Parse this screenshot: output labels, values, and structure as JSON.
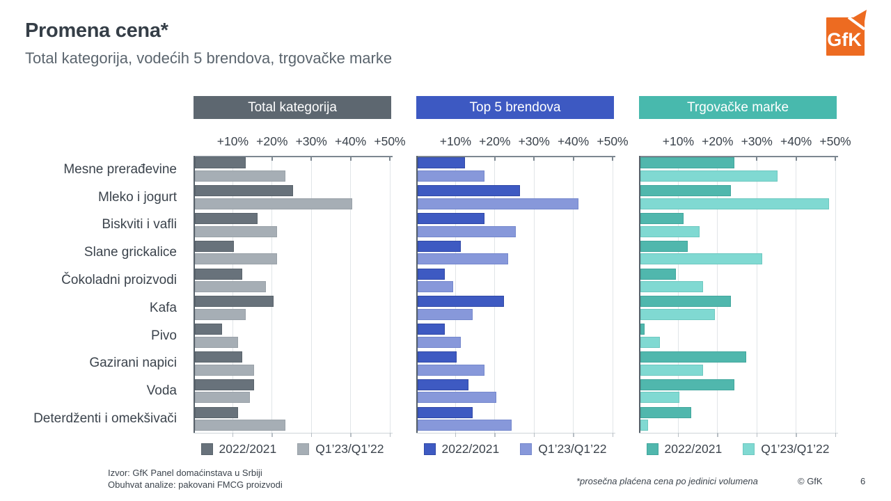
{
  "slide": {
    "title": "Promena cena*",
    "subtitle": "Total kategorija, vodećih 5 brendova, trgovačke marke",
    "logo_text": "GfK",
    "logo_color": "#ed6b21",
    "footer": {
      "source_line1": "Izvor: GfK Panel domaćinstava u Srbiji",
      "source_line2": "Obuhvat analize: pakovani FMCG proizvodi",
      "footnote": "*prosečna plaćena cena po jedinici volumena",
      "copyright": "© GfK",
      "page_number": "6"
    }
  },
  "chart_data": {
    "type": "bar",
    "orientation": "horizontal",
    "grid": true,
    "legend_position": "bottom",
    "axis": {
      "unit": "%",
      "min": 0,
      "max": 50,
      "tick_step": 10,
      "tick_labels": [
        "+10%",
        "+20%",
        "+30%",
        "+40%",
        "+50%"
      ]
    },
    "categories": [
      "Mesne prerađevine",
      "Mleko i jogurt",
      "Biskviti i vafli",
      "Slane grickalice",
      "Čokoladni proizvodi",
      "Kafa",
      "Pivo",
      "Gazirani napici",
      "Voda",
      "Deterdženti i omekšivači"
    ],
    "panels": [
      {
        "title": "Total kategorija",
        "header_color": "#5d6770",
        "series": [
          {
            "name": "2022/2021",
            "color": "#68727b",
            "border_color": "#59636b",
            "values": [
              13,
              25,
              16,
              10,
              12,
              20,
              7,
              12,
              15,
              11
            ]
          },
          {
            "name": "Q1’23/Q1’22",
            "color": "#a6aeb5",
            "border_color": "#99a1a8",
            "values": [
              23,
              40,
              21,
              21,
              18,
              13,
              11,
              15,
              14,
              23
            ]
          }
        ]
      },
      {
        "title": "Top 5 brendova",
        "header_color": "#3d59c2",
        "series": [
          {
            "name": "2022/2021",
            "color": "#3e5ac2",
            "border_color": "#3048a6",
            "values": [
              12,
              26,
              17,
              11,
              7,
              22,
              7,
              10,
              13,
              14
            ]
          },
          {
            "name": "Q1’23/Q1’22",
            "color": "#8798da",
            "border_color": "#7487cc",
            "values": [
              17,
              41,
              25,
              23,
              9,
              14,
              11,
              17,
              20,
              24
            ]
          }
        ]
      },
      {
        "title": "Trgovačke marke",
        "header_color": "#48b9ad",
        "series": [
          {
            "name": "2022/2021",
            "color": "#50b7ad",
            "border_color": "#41a69c",
            "values": [
              24,
              23,
              11,
              12,
              9,
              23,
              1,
              27,
              24,
              13
            ]
          },
          {
            "name": "Q1’23/Q1’22",
            "color": "#80d9d2",
            "border_color": "#6ec8c0",
            "values": [
              35,
              48,
              15,
              31,
              16,
              19,
              5,
              16,
              10,
              2
            ]
          }
        ]
      }
    ]
  }
}
